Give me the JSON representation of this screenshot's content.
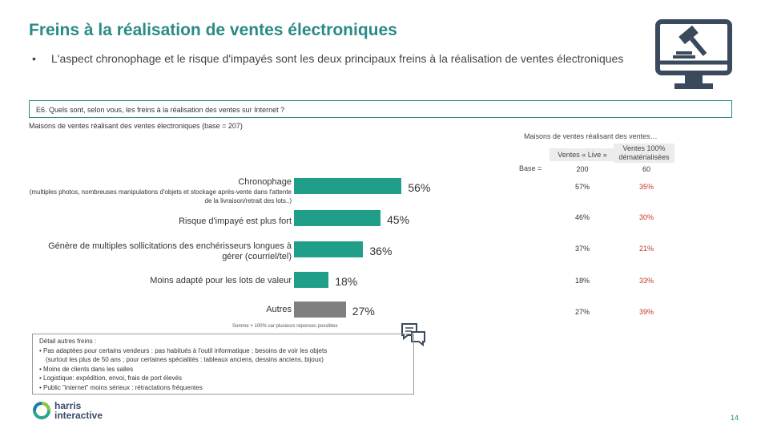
{
  "title": "Freins à la réalisation de ventes électroniques",
  "bullet": "L'aspect chronophage et le risque d'impayés sont les deux principaux freins à la réalisation de ventes électroniques",
  "bullet_marker": "•",
  "question": "E6. Quels sont, selon vous, les freins à la réalisation des ventes sur Internet ?",
  "base_note": "Maisons de ventes réalisant des ventes électroniques (base = 207)",
  "sub_header": "Maisons de ventes réalisant des ventes…",
  "columns": {
    "live": "Ventes « Live »",
    "dem_line1": "Ventes 100%",
    "dem_line2": "dématérialisées",
    "base_label": "Base =",
    "base_live": "200",
    "base_dem": "60"
  },
  "chart_data": {
    "type": "bar",
    "orientation": "horizontal",
    "categories": [
      "Chronophage",
      "Risque d'impayé est plus fort",
      "Génère de multiples sollicitations des enchérisseurs longues à gérer (courriel/tel)",
      "Moins adapté pour les lots de valeur",
      "Autres"
    ],
    "category_notes": [
      "(multiples photos, nombreuses manipulations d'objets et stockage après-vente dans l'attente de la livraison/retrait des lots..)",
      "",
      "",
      "",
      ""
    ],
    "values": [
      56,
      45,
      36,
      18,
      27
    ],
    "labels": [
      "56%",
      "45%",
      "36%",
      "18%",
      "27%"
    ],
    "colors": [
      "#1f9e89",
      "#1f9e89",
      "#1f9e89",
      "#1f9e89",
      "#7f7f7f"
    ],
    "xlim": [
      0,
      100
    ],
    "unit": "%"
  },
  "table": {
    "live": [
      "57%",
      "46%",
      "37%",
      "18%",
      "27%"
    ],
    "dem": [
      "35%",
      "30%",
      "21%",
      "33%",
      "39%"
    ]
  },
  "footnote": "Somme > 100% car plusieurs réponses possibles",
  "details": {
    "title": "Détail autres freins :",
    "items": [
      "• Pas adaptées pour certains vendeurs : pas habitués à l'outil informatique ; besoins de voir les objets",
      "(surtout les plus de 50 ans ; pour certaines spécialités : tableaux anciens, dessins anciens, bijoux)",
      "• Moins de clients dans les salles",
      "• Logistique: expédition, envoi, frais de port élevés",
      "• Public \"internet\" moins sérieux : rétractations fréquentes"
    ]
  },
  "logo": {
    "line1": "harris",
    "line2": "interactive"
  },
  "page_number": "14",
  "icons": {
    "monitor": "auction-monitor-icon",
    "chat": "chat-bubbles-icon"
  }
}
